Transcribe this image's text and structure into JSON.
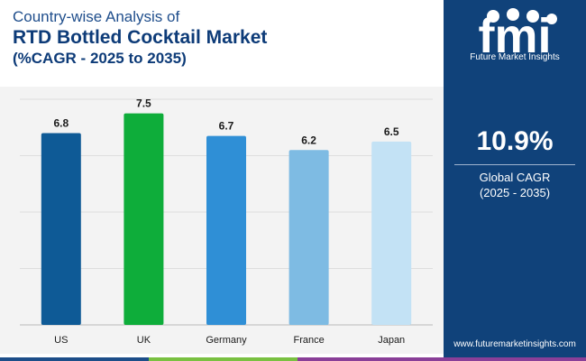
{
  "header": {
    "line1": "Country-wise Analysis of",
    "line2": "RTD Bottled Cocktail Market",
    "line3": "(%CAGR - 2025 to 2035)"
  },
  "chart_data": {
    "type": "bar",
    "categories": [
      "US",
      "UK",
      "Germany",
      "France",
      "Japan"
    ],
    "values": [
      6.8,
      7.5,
      6.7,
      6.2,
      6.5
    ],
    "data_labels": [
      "6.8",
      "7.5",
      "6.7",
      "6.2",
      "6.5"
    ],
    "bar_colors": [
      "#0e5a96",
      "#0ead3a",
      "#2f8fd6",
      "#7ebbe3",
      "#c3e2f5"
    ],
    "ylim": [
      0,
      8
    ],
    "grid": true,
    "legend": "none",
    "title": "",
    "xlabel": "",
    "ylabel": ""
  },
  "sidebar": {
    "logo_letters": "fmi",
    "logo_text": "Future Market Insights",
    "cagr_value": "10.9%",
    "cagr_label_line1": "Global CAGR",
    "cagr_label_line2": "(2025 - 2035)",
    "website": "www.futuremarketinsights.com"
  },
  "colors": {
    "panel": "#10427a",
    "title": "#0d3b78",
    "strip": [
      "#1d4e89",
      "#7ac142",
      "#8a3f98"
    ]
  }
}
